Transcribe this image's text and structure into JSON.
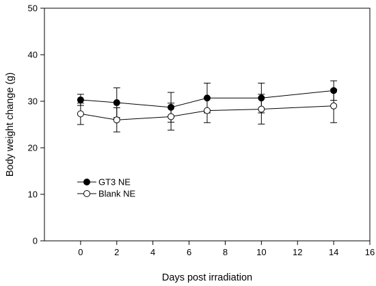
{
  "chart_data": {
    "type": "line",
    "xlabel": "Days post irradiation",
    "ylabel": "Body weight change (g)",
    "xlim": [
      -2,
      16
    ],
    "ylim": [
      0,
      50
    ],
    "xticks": [
      "0",
      "2",
      "4",
      "6",
      "8",
      "10",
      "12",
      "14",
      "16"
    ],
    "yticks": [
      "0",
      "10",
      "20",
      "30",
      "40",
      "50"
    ],
    "grid": false,
    "legend_position": "lower-left",
    "series": [
      {
        "name": "GT3 NE",
        "marker": "filled-circle",
        "color": "#000000",
        "x": [
          0,
          2,
          5,
          7,
          10,
          14
        ],
        "y": [
          30.3,
          29.7,
          28.7,
          30.7,
          30.7,
          32.3
        ],
        "err": [
          1.2,
          3.2,
          3.2,
          3.2,
          3.2,
          2.1
        ]
      },
      {
        "name": "Blank NE",
        "marker": "open-circle",
        "color": "#000000",
        "x": [
          0,
          2,
          5,
          7,
          10,
          14
        ],
        "y": [
          27.3,
          26.0,
          26.7,
          28.0,
          28.3,
          29.0
        ],
        "err": [
          2.3,
          2.6,
          2.9,
          2.6,
          3.2,
          3.6
        ]
      }
    ]
  }
}
